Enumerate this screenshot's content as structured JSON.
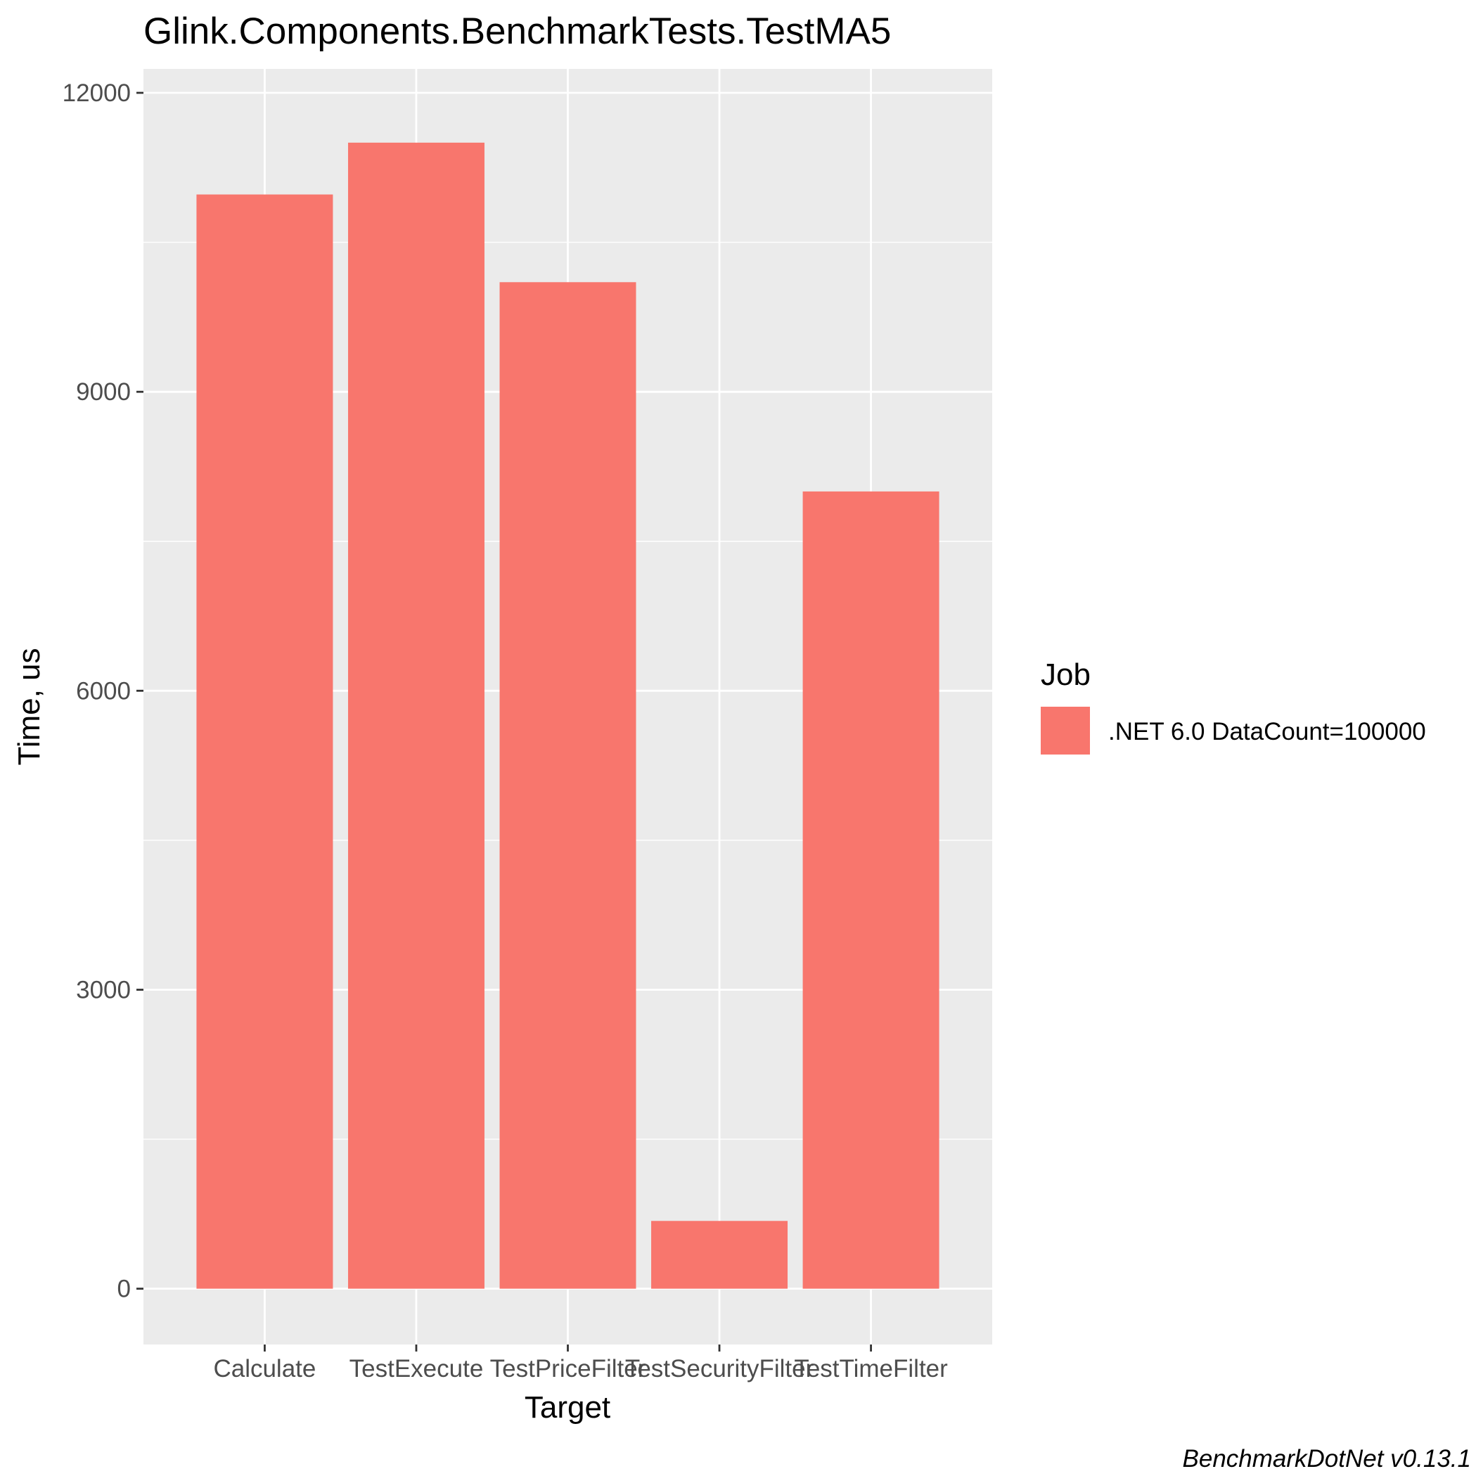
{
  "chart_data": {
    "type": "bar",
    "title": "Glink.Components.BenchmarkTests.TestMA5",
    "xlabel": "Target",
    "ylabel": "Time, us",
    "categories": [
      "Calculate",
      "TestExecute",
      "TestPriceFilter",
      "TestSecurityFilter",
      "TestTimeFilter"
    ],
    "series": [
      {
        "name": ".NET 6.0 DataCount=100000",
        "values": [
          10980,
          11500,
          10100,
          680,
          8000
        ],
        "color": "#f8766d"
      }
    ],
    "ylim": [
      -560,
      12240
    ],
    "yticks": [
      0,
      3000,
      6000,
      9000,
      12000
    ],
    "ytick_labels": [
      "0",
      "3000",
      "6000",
      "9000",
      "12000"
    ],
    "grid": true,
    "legend": {
      "title": "Job",
      "position": "right"
    },
    "caption": "BenchmarkDotNet v0.13.1"
  }
}
